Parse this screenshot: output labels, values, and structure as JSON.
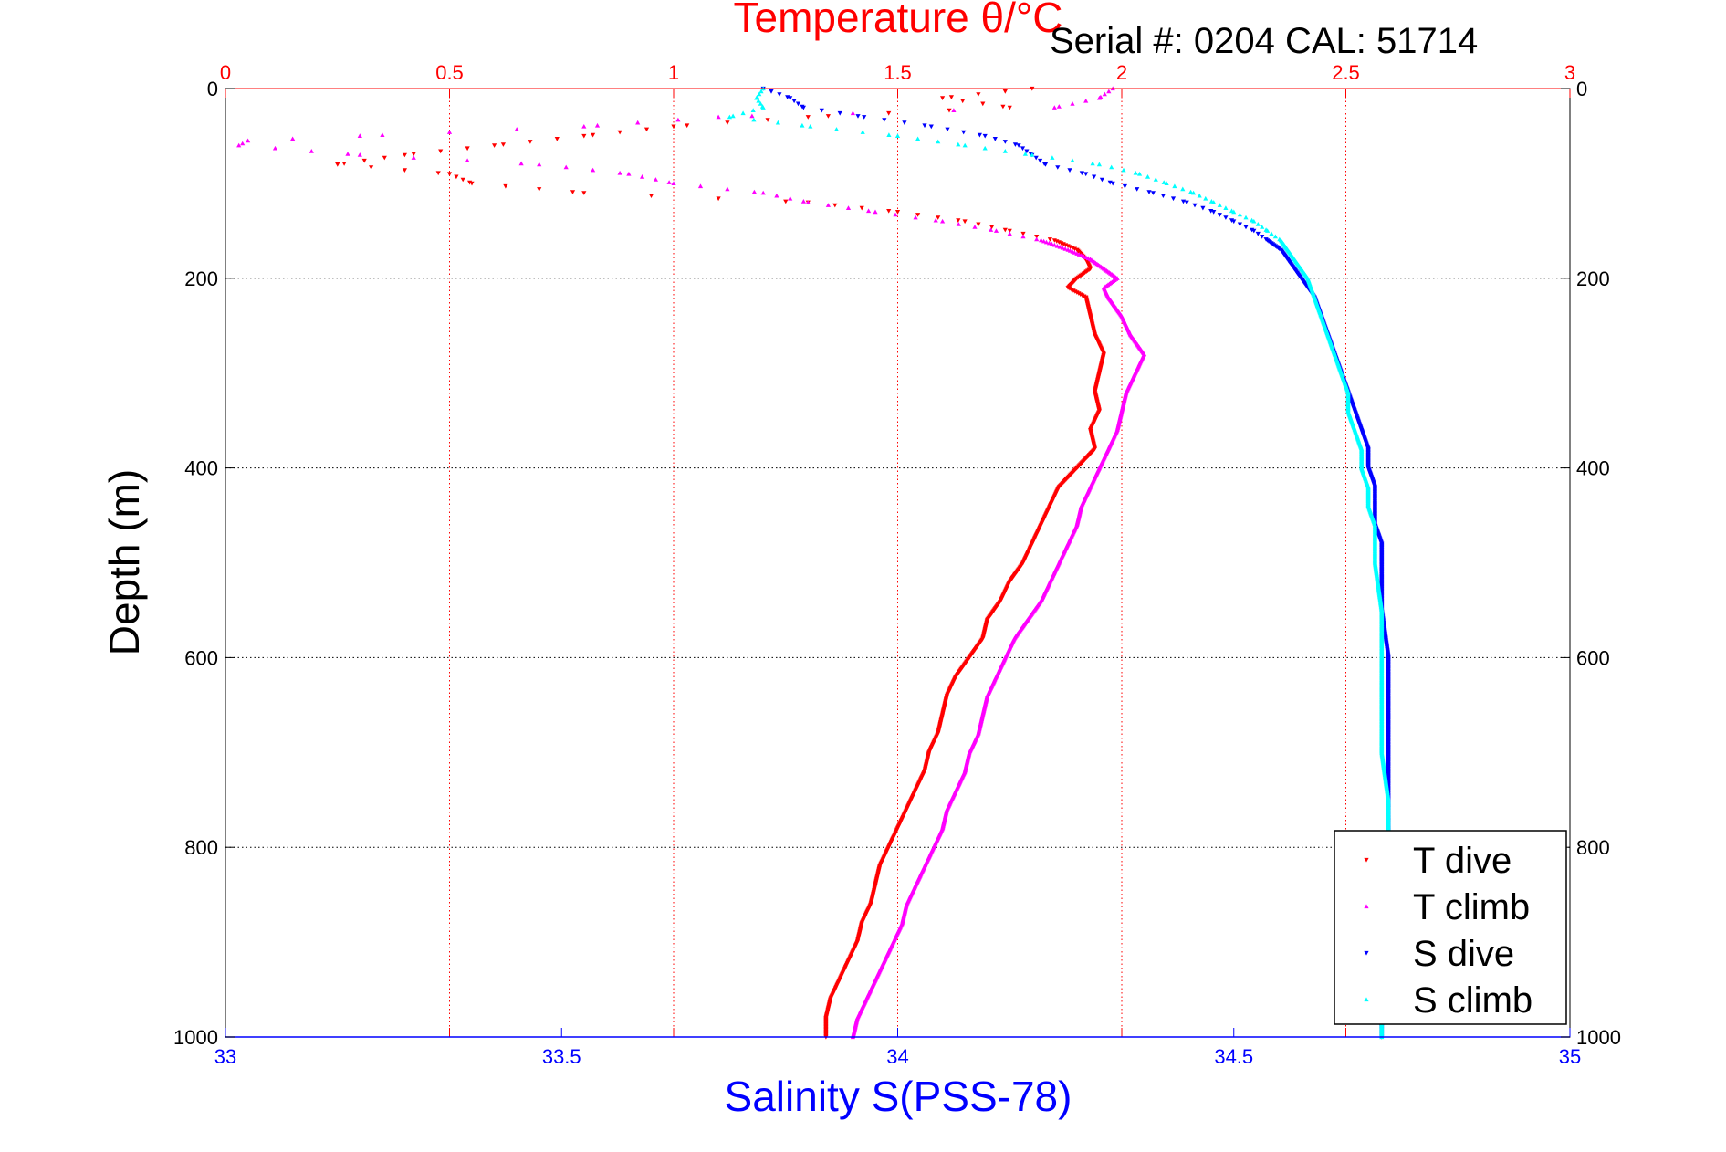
{
  "colors": {
    "t_dive": "#ff0000",
    "t_climb": "#ff00ff",
    "s_dive": "#0000ff",
    "s_climb": "#00ffff",
    "temp_axis": "#ff0000",
    "sal_axis": "#0000ff",
    "depth_axis": "#000000",
    "grid": "#000000"
  },
  "chart_data": {
    "type": "scatter",
    "title": "Temperature θ/°C",
    "subtitle": "Serial #: 0204   CAL: 51714",
    "ylabel": "Depth (m)",
    "xlabel": "Salinity S(PSS-78)",
    "ylim": [
      0,
      1000
    ],
    "y_inverted": true,
    "grid": true,
    "legend_placement": "bottom-right",
    "axes": {
      "temperature": {
        "position": "top",
        "label": "Temperature θ/°C",
        "range": [
          0,
          3
        ],
        "ticks": [
          0,
          0.5,
          1,
          1.5,
          2,
          2.5,
          3
        ],
        "tick_labels": [
          "0",
          "0.5",
          "1",
          "1.5",
          "2",
          "2.5",
          "3"
        ]
      },
      "salinity": {
        "position": "bottom",
        "label": "Salinity S(PSS-78)",
        "range": [
          33,
          35
        ],
        "ticks": [
          33,
          33.5,
          34,
          34.5,
          35
        ],
        "tick_labels": [
          "33",
          "33.5",
          "34",
          "34.5",
          "35"
        ]
      },
      "depth": {
        "position": "left-and-right",
        "label": "Depth (m)",
        "range": [
          0,
          1000
        ],
        "ticks": [
          0,
          200,
          400,
          600,
          800,
          1000
        ],
        "tick_labels": [
          "0",
          "200",
          "400",
          "600",
          "800",
          "1000"
        ]
      }
    },
    "series": [
      {
        "name": "T dive",
        "axis": "temperature",
        "marker": "triangle-down",
        "depth": [
          0,
          10,
          20,
          30,
          40,
          50,
          60,
          70,
          80,
          90,
          100,
          110,
          120,
          130,
          140,
          150,
          160,
          170,
          180,
          190,
          200,
          210,
          220,
          240,
          260,
          280,
          300,
          320,
          340,
          360,
          380,
          400,
          420,
          440,
          460,
          480,
          500,
          520,
          540,
          560,
          580,
          600,
          620,
          640,
          660,
          680,
          700,
          720,
          740,
          760,
          780,
          800,
          820,
          840,
          860,
          880,
          900,
          920,
          940,
          960,
          980,
          1000
        ],
        "values": [
          1.8,
          1.6,
          1.75,
          1.3,
          1.0,
          0.8,
          0.6,
          0.4,
          0.25,
          0.5,
          0.55,
          0.8,
          1.3,
          1.5,
          1.65,
          1.75,
          1.85,
          1.9,
          1.92,
          1.93,
          1.9,
          1.88,
          1.92,
          1.93,
          1.94,
          1.96,
          1.95,
          1.94,
          1.95,
          1.93,
          1.94,
          1.9,
          1.86,
          1.84,
          1.82,
          1.8,
          1.78,
          1.75,
          1.73,
          1.7,
          1.69,
          1.66,
          1.63,
          1.61,
          1.6,
          1.59,
          1.57,
          1.56,
          1.54,
          1.52,
          1.5,
          1.48,
          1.46,
          1.45,
          1.44,
          1.42,
          1.41,
          1.39,
          1.37,
          1.35,
          1.34,
          1.34
        ]
      },
      {
        "name": "T climb",
        "axis": "temperature",
        "marker": "triangle-up",
        "depth": [
          0,
          10,
          20,
          30,
          40,
          50,
          55,
          60,
          70,
          80,
          90,
          100,
          110,
          120,
          130,
          140,
          150,
          160,
          170,
          180,
          190,
          200,
          210,
          220,
          240,
          260,
          280,
          300,
          320,
          340,
          360,
          380,
          400,
          420,
          440,
          460,
          480,
          500,
          520,
          540,
          560,
          580,
          600,
          620,
          640,
          660,
          680,
          700,
          720,
          740,
          760,
          780,
          800,
          820,
          840,
          860,
          880,
          900,
          920,
          940,
          960,
          980,
          1000
        ],
        "values": [
          1.98,
          1.95,
          1.85,
          1.1,
          0.8,
          0.3,
          0.05,
          0.03,
          0.3,
          0.7,
          0.9,
          1.0,
          1.2,
          1.3,
          1.45,
          1.6,
          1.72,
          1.82,
          1.88,
          1.93,
          1.96,
          1.99,
          1.96,
          1.97,
          2.0,
          2.02,
          2.05,
          2.03,
          2.01,
          2.0,
          1.99,
          1.97,
          1.95,
          1.93,
          1.91,
          1.9,
          1.88,
          1.86,
          1.84,
          1.82,
          1.79,
          1.76,
          1.74,
          1.72,
          1.7,
          1.69,
          1.68,
          1.66,
          1.65,
          1.63,
          1.61,
          1.6,
          1.58,
          1.56,
          1.54,
          1.52,
          1.51,
          1.49,
          1.47,
          1.45,
          1.43,
          1.41,
          1.4
        ]
      },
      {
        "name": "S dive",
        "axis": "salinity",
        "marker": "triangle-down",
        "depth": [
          0,
          10,
          20,
          30,
          40,
          50,
          60,
          70,
          80,
          90,
          100,
          110,
          120,
          130,
          140,
          150,
          160,
          170,
          180,
          190,
          200,
          220,
          240,
          260,
          280,
          300,
          320,
          340,
          360,
          380,
          400,
          420,
          440,
          460,
          480,
          500,
          550,
          600,
          650,
          700,
          750,
          800,
          850,
          900,
          950,
          1000
        ],
        "values": [
          33.8,
          33.84,
          33.86,
          33.95,
          34.05,
          34.13,
          34.18,
          34.2,
          34.22,
          34.28,
          34.32,
          34.38,
          34.43,
          34.47,
          34.5,
          34.53,
          34.55,
          34.57,
          34.58,
          34.59,
          34.6,
          34.62,
          34.63,
          34.64,
          34.65,
          34.66,
          34.67,
          34.68,
          34.69,
          34.7,
          34.7,
          34.71,
          34.71,
          34.71,
          34.72,
          34.72,
          34.72,
          34.73,
          34.73,
          34.73,
          34.73,
          34.73,
          34.72,
          34.72,
          34.72,
          34.72
        ]
      },
      {
        "name": "S climb",
        "axis": "salinity",
        "marker": "triangle-up",
        "depth": [
          0,
          10,
          20,
          30,
          40,
          50,
          60,
          70,
          80,
          90,
          100,
          110,
          120,
          130,
          140,
          150,
          160,
          170,
          180,
          190,
          200,
          220,
          240,
          260,
          280,
          300,
          320,
          340,
          360,
          380,
          400,
          420,
          440,
          460,
          480,
          500,
          550,
          600,
          650,
          700,
          750,
          800,
          850,
          900,
          950,
          1000
        ],
        "values": [
          33.8,
          33.79,
          33.8,
          33.75,
          33.87,
          34.0,
          34.1,
          34.2,
          34.3,
          34.36,
          34.4,
          34.44,
          34.47,
          34.5,
          34.53,
          34.55,
          34.57,
          34.58,
          34.59,
          34.6,
          34.61,
          34.62,
          34.63,
          34.64,
          34.65,
          34.66,
          34.67,
          34.67,
          34.68,
          34.69,
          34.69,
          34.7,
          34.7,
          34.71,
          34.71,
          34.71,
          34.72,
          34.72,
          34.72,
          34.72,
          34.73,
          34.73,
          34.72,
          34.72,
          34.72,
          34.72
        ]
      }
    ]
  }
}
